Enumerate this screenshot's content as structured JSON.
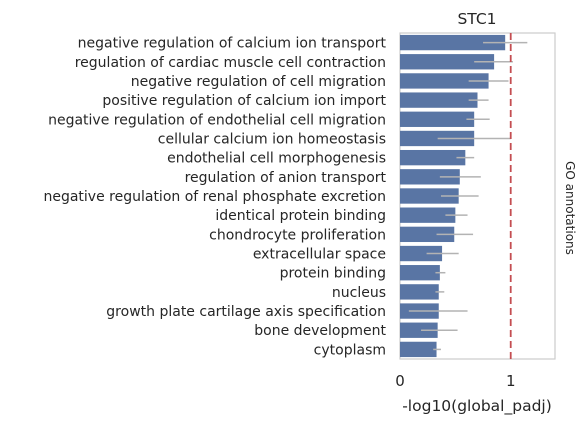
{
  "chart_data": {
    "type": "bar",
    "orientation": "horizontal",
    "title": "STC1",
    "xlabel": "-log10(global_padj)",
    "side_label": "GO annotations",
    "xlim": [
      0,
      1.4
    ],
    "x_ticks": [
      0,
      1
    ],
    "grid": false,
    "threshold_line": 1.0,
    "colors": {
      "bar": "#5975a4",
      "error": "#b3b3b3",
      "threshold": "#c44e52",
      "frame": "#cccccc"
    },
    "categories": [
      "negative regulation of calcium ion transport",
      "regulation of cardiac muscle cell contraction",
      "negative regulation of cell migration",
      "positive regulation of calcium ion import",
      "negative regulation of endothelial cell migration",
      "cellular calcium ion homeostasis",
      "endothelial cell morphogenesis",
      "regulation of anion transport",
      "negative regulation of renal phosphate excretion",
      "identical protein binding",
      "chondrocyte proliferation",
      "extracellular space",
      "protein binding",
      "nucleus",
      "growth plate cartilage axis specification",
      "bone development",
      "cytoplasm"
    ],
    "values": [
      0.95,
      0.85,
      0.8,
      0.7,
      0.67,
      0.67,
      0.59,
      0.54,
      0.53,
      0.5,
      0.49,
      0.38,
      0.36,
      0.35,
      0.35,
      0.34,
      0.33
    ],
    "error_low": [
      0.75,
      0.67,
      0.62,
      0.62,
      0.6,
      0.34,
      0.51,
      0.36,
      0.37,
      0.41,
      0.33,
      0.24,
      0.32,
      0.32,
      0.08,
      0.19,
      0.3
    ],
    "error_high": [
      1.15,
      1.02,
      0.98,
      0.8,
      0.81,
      1.0,
      0.67,
      0.73,
      0.71,
      0.61,
      0.66,
      0.53,
      0.41,
      0.4,
      0.61,
      0.52,
      0.37
    ]
  }
}
